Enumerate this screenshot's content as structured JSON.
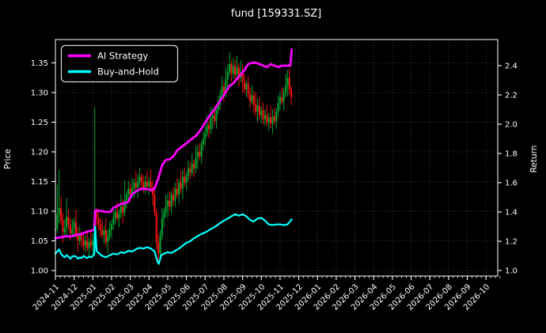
{
  "chart_data": {
    "type": "line",
    "overlay": "ohlc_bars",
    "title": "fund [159331.SZ]",
    "grid": true,
    "legend": {
      "position": "upper left",
      "items": [
        {
          "label": "AI Strategy",
          "color": "#ff00ff"
        },
        {
          "label": "Buy-and-Hold",
          "color": "#00ffff"
        }
      ]
    },
    "x_axis": {
      "rotation": 45,
      "tick_labels": [
        "2024-11",
        "2024-12",
        "2025-01",
        "2025-02",
        "2025-03",
        "2025-04",
        "2025-05",
        "2025-06",
        "2025-07",
        "2025-08",
        "2025-09",
        "2025-10",
        "2025-11",
        "2025-12",
        "2026-01",
        "2026-02",
        "2026-03",
        "2026-04",
        "2026-05",
        "2026-06",
        "2026-07",
        "2026-08",
        "2026-09",
        "2026-10"
      ]
    },
    "y_left": {
      "label": "Price",
      "tick_labels": [
        "1.00",
        "1.05",
        "1.10",
        "1.15",
        "1.20",
        "1.25",
        "1.30",
        "1.35"
      ],
      "tick_values": [
        1.0,
        1.05,
        1.1,
        1.15,
        1.2,
        1.25,
        1.3,
        1.35
      ],
      "range": [
        0.991,
        1.389
      ]
    },
    "y_right": {
      "label": "Return",
      "tick_labels": [
        "1.0",
        "1.2",
        "1.4",
        "1.6",
        "1.8",
        "2.0",
        "2.2",
        "2.4"
      ],
      "tick_values": [
        1.0,
        1.2,
        1.4,
        1.6,
        1.8,
        2.0,
        2.2,
        2.4
      ],
      "range": [
        0.962,
        2.578
      ]
    },
    "series": [
      {
        "name": "AI Strategy",
        "axis": "right",
        "color": "#ff00ff",
        "points": [
          [
            0.0,
            1.22
          ],
          [
            0.2,
            1.225
          ],
          [
            0.4,
            1.23
          ],
          [
            0.6,
            1.235
          ],
          [
            0.8,
            1.23
          ],
          [
            1.0,
            1.24
          ],
          [
            1.2,
            1.245
          ],
          [
            1.4,
            1.25
          ],
          [
            1.6,
            1.26
          ],
          [
            1.8,
            1.27
          ],
          [
            2.0,
            1.275
          ],
          [
            2.08,
            1.28
          ],
          [
            2.12,
            1.41
          ],
          [
            2.3,
            1.41
          ],
          [
            2.5,
            1.405
          ],
          [
            2.7,
            1.4
          ],
          [
            2.9,
            1.4
          ],
          [
            3.0,
            1.41
          ],
          [
            3.1,
            1.43
          ],
          [
            3.3,
            1.44
          ],
          [
            3.5,
            1.455
          ],
          [
            3.7,
            1.46
          ],
          [
            3.9,
            1.47
          ],
          [
            4.0,
            1.5
          ],
          [
            4.1,
            1.52
          ],
          [
            4.3,
            1.54
          ],
          [
            4.5,
            1.555
          ],
          [
            4.7,
            1.56
          ],
          [
            4.9,
            1.555
          ],
          [
            5.1,
            1.55
          ],
          [
            5.3,
            1.56
          ],
          [
            5.5,
            1.63
          ],
          [
            5.7,
            1.72
          ],
          [
            5.9,
            1.755
          ],
          [
            6.1,
            1.76
          ],
          [
            6.3,
            1.78
          ],
          [
            6.5,
            1.82
          ],
          [
            6.7,
            1.84
          ],
          [
            6.9,
            1.86
          ],
          [
            7.1,
            1.88
          ],
          [
            7.3,
            1.9
          ],
          [
            7.5,
            1.92
          ],
          [
            7.7,
            1.95
          ],
          [
            7.9,
            1.99
          ],
          [
            8.1,
            2.03
          ],
          [
            8.3,
            2.07
          ],
          [
            8.5,
            2.1
          ],
          [
            8.7,
            2.14
          ],
          [
            8.9,
            2.18
          ],
          [
            9.1,
            2.22
          ],
          [
            9.3,
            2.26
          ],
          [
            9.5,
            2.28
          ],
          [
            9.7,
            2.31
          ],
          [
            9.9,
            2.34
          ],
          [
            10.1,
            2.37
          ],
          [
            10.3,
            2.41
          ],
          [
            10.5,
            2.42
          ],
          [
            10.7,
            2.42
          ],
          [
            10.9,
            2.41
          ],
          [
            11.1,
            2.4
          ],
          [
            11.3,
            2.39
          ],
          [
            11.5,
            2.41
          ],
          [
            11.7,
            2.4
          ],
          [
            11.9,
            2.39
          ],
          [
            12.1,
            2.4
          ],
          [
            12.3,
            2.4
          ],
          [
            12.5,
            2.4
          ],
          [
            12.55,
            2.4
          ],
          [
            12.62,
            2.51
          ]
        ]
      },
      {
        "name": "Buy-and-Hold",
        "axis": "right",
        "color": "#00ffff",
        "points": [
          [
            0.0,
            1.115
          ],
          [
            0.1,
            1.13
          ],
          [
            0.2,
            1.145
          ],
          [
            0.3,
            1.115
          ],
          [
            0.4,
            1.1
          ],
          [
            0.5,
            1.09
          ],
          [
            0.6,
            1.105
          ],
          [
            0.7,
            1.095
          ],
          [
            0.8,
            1.08
          ],
          [
            0.9,
            1.095
          ],
          [
            1.0,
            1.1
          ],
          [
            1.1,
            1.095
          ],
          [
            1.2,
            1.08
          ],
          [
            1.3,
            1.09
          ],
          [
            1.4,
            1.085
          ],
          [
            1.5,
            1.1
          ],
          [
            1.6,
            1.09
          ],
          [
            1.7,
            1.085
          ],
          [
            1.8,
            1.095
          ],
          [
            1.9,
            1.09
          ],
          [
            2.0,
            1.1
          ],
          [
            2.08,
            1.11
          ],
          [
            2.12,
            1.3
          ],
          [
            2.2,
            1.135
          ],
          [
            2.3,
            1.12
          ],
          [
            2.5,
            1.1
          ],
          [
            2.7,
            1.09
          ],
          [
            2.9,
            1.105
          ],
          [
            3.1,
            1.115
          ],
          [
            3.3,
            1.11
          ],
          [
            3.5,
            1.125
          ],
          [
            3.7,
            1.12
          ],
          [
            3.9,
            1.135
          ],
          [
            4.1,
            1.13
          ],
          [
            4.3,
            1.145
          ],
          [
            4.5,
            1.155
          ],
          [
            4.7,
            1.15
          ],
          [
            4.9,
            1.16
          ],
          [
            5.1,
            1.15
          ],
          [
            5.3,
            1.13
          ],
          [
            5.45,
            1.06
          ],
          [
            5.52,
            1.045
          ],
          [
            5.65,
            1.105
          ],
          [
            5.8,
            1.115
          ],
          [
            6.0,
            1.125
          ],
          [
            6.2,
            1.12
          ],
          [
            6.4,
            1.135
          ],
          [
            6.6,
            1.15
          ],
          [
            6.8,
            1.17
          ],
          [
            7.0,
            1.19
          ],
          [
            7.2,
            1.2
          ],
          [
            7.4,
            1.22
          ],
          [
            7.6,
            1.235
          ],
          [
            7.8,
            1.25
          ],
          [
            8.0,
            1.26
          ],
          [
            8.2,
            1.275
          ],
          [
            8.4,
            1.29
          ],
          [
            8.6,
            1.305
          ],
          [
            8.8,
            1.325
          ],
          [
            9.0,
            1.34
          ],
          [
            9.2,
            1.355
          ],
          [
            9.4,
            1.37
          ],
          [
            9.6,
            1.385
          ],
          [
            9.8,
            1.375
          ],
          [
            10.0,
            1.385
          ],
          [
            10.2,
            1.37
          ],
          [
            10.4,
            1.345
          ],
          [
            10.6,
            1.335
          ],
          [
            10.8,
            1.355
          ],
          [
            11.0,
            1.36
          ],
          [
            11.2,
            1.34
          ],
          [
            11.4,
            1.315
          ],
          [
            11.6,
            1.31
          ],
          [
            11.8,
            1.315
          ],
          [
            12.0,
            1.315
          ],
          [
            12.2,
            1.31
          ],
          [
            12.4,
            1.315
          ],
          [
            12.62,
            1.35
          ]
        ]
      }
    ],
    "price_bars": {
      "axis": "left",
      "t_start": 0,
      "t_step": 0.1,
      "up_color": "#00a332",
      "down_color": "#f31212",
      "closes": [
        1.07,
        1.095,
        1.105,
        1.085,
        1.065,
        1.072,
        1.09,
        1.078,
        1.062,
        1.07,
        1.082,
        1.062,
        1.05,
        1.06,
        1.052,
        1.042,
        1.05,
        1.038,
        1.048,
        1.042,
        1.05,
        1.1,
        1.088,
        1.078,
        1.068,
        1.06,
        1.068,
        1.048,
        1.058,
        1.068,
        1.078,
        1.088,
        1.098,
        1.088,
        1.096,
        1.108,
        1.098,
        1.118,
        1.128,
        1.138,
        1.128,
        1.138,
        1.148,
        1.14,
        1.15,
        1.158,
        1.148,
        1.14,
        1.15,
        1.142,
        1.15,
        1.14,
        1.128,
        1.098,
        1.048,
        1.028,
        1.058,
        1.088,
        1.098,
        1.108,
        1.118,
        1.108,
        1.128,
        1.118,
        1.138,
        1.128,
        1.148,
        1.138,
        1.158,
        1.148,
        1.16,
        1.172,
        1.165,
        1.18,
        1.172,
        1.19,
        1.2,
        1.192,
        1.212,
        1.222,
        1.232,
        1.245,
        1.238,
        1.256,
        1.262,
        1.252,
        1.272,
        1.282,
        1.295,
        1.31,
        1.3,
        1.322,
        1.335,
        1.348,
        1.332,
        1.345,
        1.33,
        1.342,
        1.325,
        1.335,
        1.318,
        1.305,
        1.315,
        1.298,
        1.285,
        1.295,
        1.28,
        1.268,
        1.278,
        1.262,
        1.27,
        1.255,
        1.262,
        1.25,
        1.258,
        1.248,
        1.26,
        1.252,
        1.268,
        1.282,
        1.292,
        1.285,
        1.3,
        1.312,
        1.325,
        1.305,
        1.292
      ],
      "wick_up_cycle": [
        0.01,
        0.017,
        0.007,
        0.02,
        0.012,
        0.015,
        0.006,
        0.013
      ],
      "wick_dn_cycle": [
        0.011,
        0.006,
        0.015,
        0.008,
        0.018,
        0.007,
        0.013,
        0.009
      ],
      "overrides": {
        "1": {
          "h": 1.145
        },
        "2": {
          "h": 1.17
        },
        "6": {
          "h": 1.122
        },
        "21": {
          "h": 1.275,
          "l": 1.042
        },
        "37": {
          "h": 1.152
        },
        "55": {
          "l": 1.015
        },
        "93": {
          "h": 1.368
        },
        "97": {
          "h": 1.362
        },
        "113": {
          "l": 1.243
        },
        "124": {
          "h": 1.338
        }
      }
    }
  },
  "colors": {
    "background": "#000000",
    "text": "#ffffff",
    "axes": "#ffffff",
    "grid": "#4d4d4d",
    "ai_strategy": "#ff00ff",
    "buy_and_hold": "#00ffff",
    "bar_up": "#00a332",
    "bar_down": "#f31212"
  }
}
